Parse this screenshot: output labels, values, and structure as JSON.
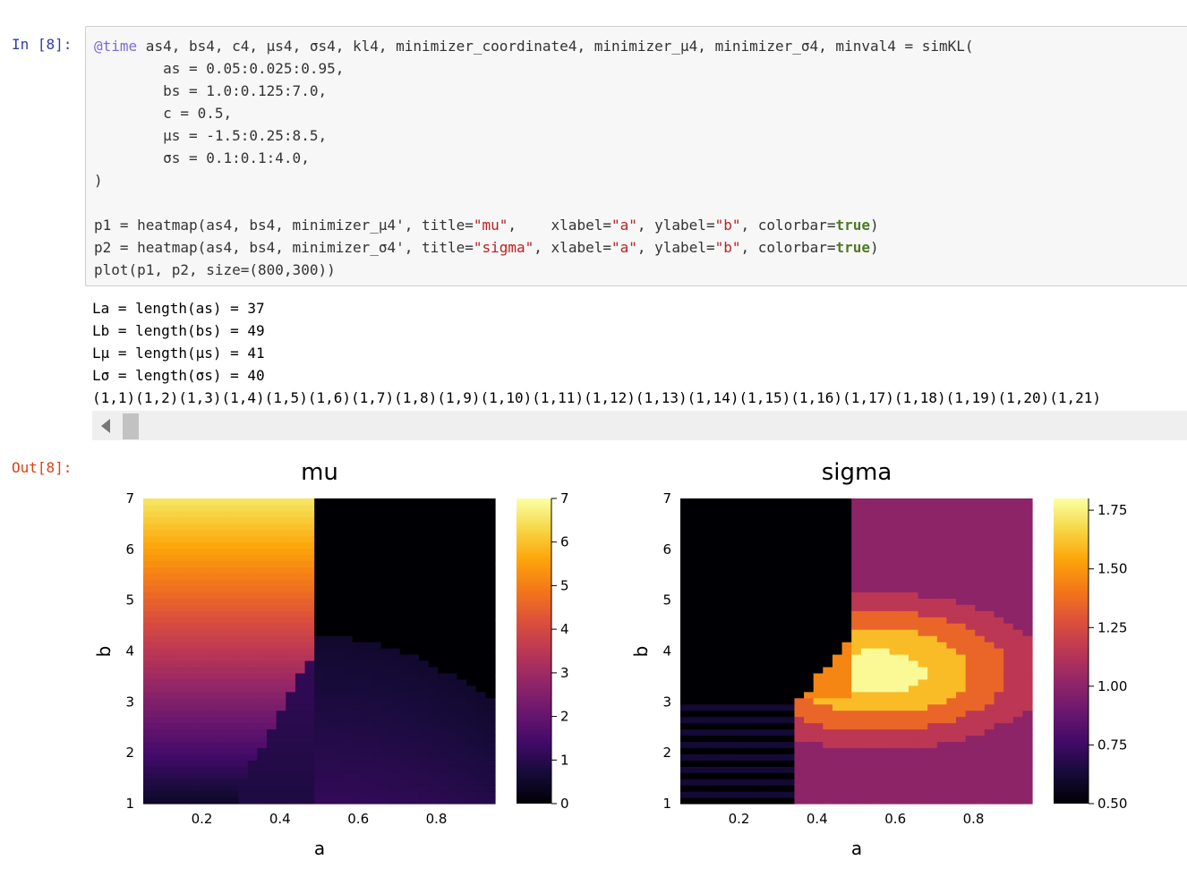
{
  "cell": {
    "in_prompt": "In [8]:",
    "out_prompt": "Out[8]:",
    "code": {
      "line1_macro": "@time",
      "line1_rest": " as4, bs4, c4, μs4, σs4, kl4, minimizer_coordinate4, minimizer_μ4, minimizer_σ4, minval4 = simKL(",
      "line2": "        as = 0.05:0.025:0.95,",
      "line3": "        bs = 1.0:0.125:7.0,",
      "line4": "        c = 0.5,",
      "line5": "        μs = -1.5:0.25:8.5,",
      "line6": "        σs = 0.1:0.1:4.0,",
      "line7": ")",
      "line8": "",
      "line9_a": "p1 = heatmap(as4, bs4, minimizer_μ4', title=",
      "line9_str1": "\"mu\"",
      "line9_b": ",    xlabel=",
      "line9_str2": "\"a\"",
      "line9_c": ", ylabel=",
      "line9_str3": "\"b\"",
      "line9_d": ", colorbar=",
      "line9_bool": "true",
      "line9_e": ")",
      "line10_a": "p2 = heatmap(as4, bs4, minimizer_σ4', title=",
      "line10_str1": "\"sigma\"",
      "line10_b": ", xlabel=",
      "line10_str2": "\"a\"",
      "line10_c": ", ylabel=",
      "line10_str3": "\"b\"",
      "line10_d": ", colorbar=",
      "line10_bool": "true",
      "line10_e": ")",
      "line11": "plot(p1, p2, size=(800,300))"
    },
    "stdout": [
      "La = length(as) = 37",
      "Lb = length(bs) = 49",
      "Lμ = length(μs) = 41",
      "Lσ = length(σs) = 40",
      "(1,1)(1,2)(1,3)(1,4)(1,5)(1,6)(1,7)(1,8)(1,9)(1,10)(1,11)(1,12)(1,13)(1,14)(1,15)(1,16)(1,17)(1,18)(1,19)(1,20)(1,21)"
    ]
  },
  "chart_data": [
    {
      "type": "heatmap",
      "title": "mu",
      "xlabel": "a",
      "ylabel": "b",
      "xlim": [
        0.05,
        0.95
      ],
      "ylim": [
        1.0,
        7.0
      ],
      "x": {
        "start": 0.05,
        "step": 0.025,
        "stop": 0.95
      },
      "y": {
        "start": 1.0,
        "step": 0.125,
        "stop": 7.0
      },
      "xticks": [
        "0.2",
        "0.4",
        "0.6",
        "0.8"
      ],
      "yticks": [
        "1",
        "2",
        "3",
        "4",
        "5",
        "6",
        "7"
      ],
      "colorbar": {
        "min": 0,
        "max": 7,
        "ticks": [
          "0",
          "1",
          "2",
          "3",
          "4",
          "5",
          "6",
          "7"
        ]
      },
      "colormap": "inferno",
      "regions": [
        {
          "region": "a < 0.5 and b above the boundary",
          "z": "approximately b - 0.5 (about 0.5 to 6.5)"
        },
        {
          "region": "a >= 0.5 and b > 4",
          "z": 0
        },
        {
          "region": "low-b lobe spanning a ≈ 0.3-0.95, b < 4.2",
          "z": "about 0.6 to 1.5"
        }
      ]
    },
    {
      "type": "heatmap",
      "title": "sigma",
      "xlabel": "a",
      "ylabel": "b",
      "xlim": [
        0.05,
        0.95
      ],
      "ylim": [
        1.0,
        7.0
      ],
      "x": {
        "start": 0.05,
        "step": 0.025,
        "stop": 0.95
      },
      "y": {
        "start": 1.0,
        "step": 0.125,
        "stop": 7.0
      },
      "xticks": [
        "0.2",
        "0.4",
        "0.6",
        "0.8"
      ],
      "yticks": [
        "1",
        "2",
        "3",
        "4",
        "5",
        "6",
        "7"
      ],
      "colorbar": {
        "min": 0.5,
        "max": 1.8,
        "ticks": [
          "0.50",
          "0.75",
          "1.00",
          "1.25",
          "1.50",
          "1.75"
        ]
      },
      "colormap": "inferno",
      "regions": [
        {
          "region": "a < 0.5 and b > 3",
          "z": 0.5
        },
        {
          "region": "a >= 0.5 background",
          "z": 1.0
        },
        {
          "region": "central blob centered near a ≈ 0.55, b ≈ 3.8",
          "z": "up to about 1.8"
        },
        {
          "region": "lower-left striped area",
          "z": "about 0.5 to 0.7"
        }
      ]
    }
  ]
}
